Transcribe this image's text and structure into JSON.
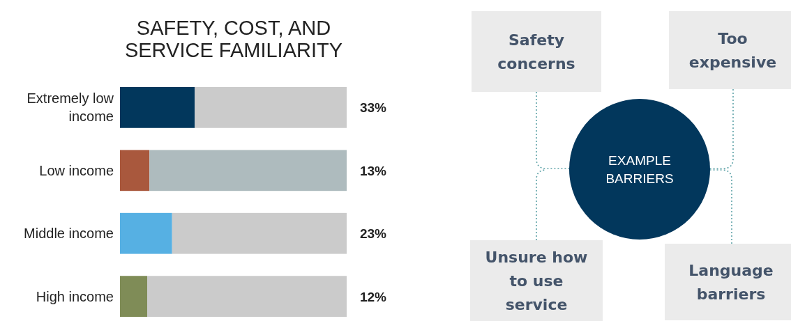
{
  "chart_data": [
    {
      "type": "bar",
      "orientation": "horizontal",
      "stacked": true,
      "title": "SAFETY, COST, AND SERVICE FAMILIARITY",
      "categories": [
        "Extremely low income",
        "Low income",
        "Middle income",
        "High income"
      ],
      "xlim": [
        0,
        100
      ],
      "series": [
        {
          "colors": [
            "#02375c",
            "#a9583d",
            "#56b0e3",
            "#7f8c57"
          ],
          "values": [
            33,
            13,
            23,
            12
          ],
          "value_labels": [
            "33%",
            "13%",
            "23%",
            "12%"
          ]
        },
        {
          "colors": [
            "#cbcbcb",
            "#aebbbe",
            "#cbcbcb",
            "#cbcbcb"
          ],
          "values": [
            67,
            87,
            77,
            88
          ]
        }
      ]
    },
    {
      "type": "other",
      "annotations": [
        "Safety concerns",
        "Too expensive",
        "Unsure how to use service",
        "Language barriers",
        "EXAMPLE BARRIERS"
      ]
    }
  ]
}
